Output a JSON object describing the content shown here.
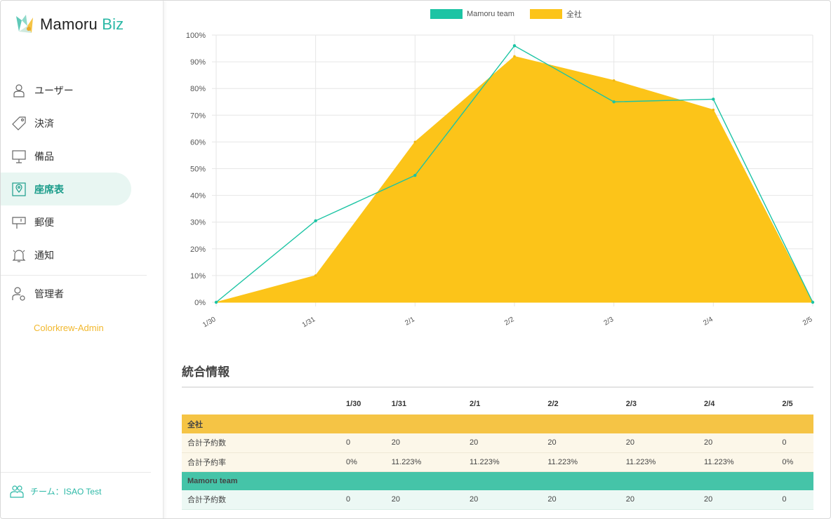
{
  "brand": {
    "name_main": "Mamoru",
    "name_accent": "Biz"
  },
  "sidebar": {
    "items": [
      {
        "label": "ユーザー",
        "icon": "user-icon"
      },
      {
        "label": "決済",
        "icon": "tag-icon"
      },
      {
        "label": "備品",
        "icon": "monitor-icon"
      },
      {
        "label": "座席表",
        "icon": "map-pin-icon",
        "active": true
      },
      {
        "label": "郵便",
        "icon": "mailbox-icon"
      },
      {
        "label": "通知",
        "icon": "bell-icon"
      },
      {
        "label": "管理者",
        "icon": "admin-gear-icon"
      }
    ],
    "admin_link": "Colorkrew-Admin",
    "team": "チーム：ISAO Test"
  },
  "colors": {
    "accent": "#2bb8a6",
    "team": "#1cc4a4",
    "all": "#fcc419",
    "admin": "#f2b82e"
  },
  "chart_data": {
    "type": "area",
    "x": [
      "1/30",
      "1/31",
      "2/1",
      "2/2",
      "2/3",
      "2/4",
      "2/5"
    ],
    "series": [
      {
        "name": "Mamoru team",
        "type": "line",
        "color": "#1cc4a4",
        "values": [
          0,
          30.5,
          47.5,
          96,
          75,
          76,
          0
        ]
      },
      {
        "name": "全社",
        "type": "area",
        "color": "#fcc419",
        "values": [
          0,
          10,
          60,
          92,
          83,
          72,
          0
        ]
      }
    ],
    "yticks": [
      "0%",
      "10%",
      "20%",
      "30%",
      "40%",
      "50%",
      "60%",
      "70%",
      "80%",
      "90%",
      "100%"
    ],
    "ylim": [
      0,
      100
    ],
    "legend_position": "top",
    "grid": true
  },
  "stats": {
    "title": "統合情報",
    "dates": [
      "1/30",
      "1/31",
      "2/1",
      "2/2",
      "2/3",
      "2/4",
      "2/5"
    ],
    "groups": [
      {
        "name": "全社",
        "rows": [
          {
            "label": "合計予約数",
            "values": [
              "0",
              "20",
              "20",
              "20",
              "20",
              "20",
              "0"
            ]
          },
          {
            "label": "合計予約率",
            "values": [
              "0%",
              "11.223%",
              "11.223%",
              "11.223%",
              "11.223%",
              "11.223%",
              "0%"
            ]
          }
        ]
      },
      {
        "name": "Mamoru team",
        "rows": [
          {
            "label": "合計予約数",
            "values": [
              "0",
              "20",
              "20",
              "20",
              "20",
              "20",
              "0"
            ]
          }
        ]
      }
    ]
  }
}
